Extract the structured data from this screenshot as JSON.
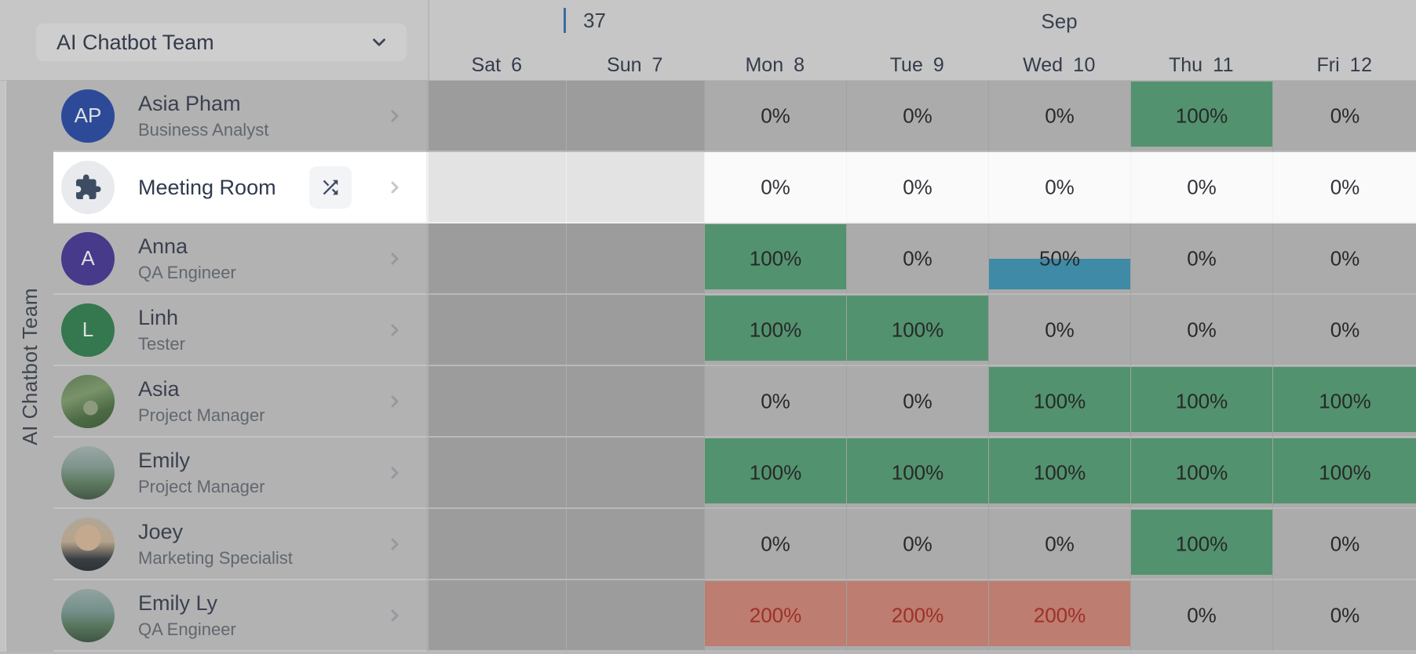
{
  "header": {
    "team_selector": {
      "label": "AI Chatbot Team"
    },
    "week_number": "37",
    "month_label": "Sep",
    "days": [
      {
        "name": "Sat",
        "date": "6",
        "weekend": true
      },
      {
        "name": "Sun",
        "date": "7",
        "weekend": true
      },
      {
        "name": "Mon",
        "date": "8",
        "weekend": false
      },
      {
        "name": "Tue",
        "date": "9",
        "weekend": false
      },
      {
        "name": "Wed",
        "date": "10",
        "weekend": false
      },
      {
        "name": "Thu",
        "date": "11",
        "weekend": false
      },
      {
        "name": "Fri",
        "date": "12",
        "weekend": false
      }
    ]
  },
  "group_label": "AI Chatbot Team",
  "rows": [
    {
      "name": "Asia Pham",
      "role": "Business Analyst",
      "highlight": false,
      "avatar": {
        "kind": "initials",
        "initials": "AP",
        "color": "#2d4a99"
      },
      "cells": [
        {
          "kind": "weekend",
          "label": ""
        },
        {
          "kind": "weekend",
          "label": ""
        },
        {
          "kind": "zero",
          "label": "0%"
        },
        {
          "kind": "zero",
          "label": "0%"
        },
        {
          "kind": "zero",
          "label": "0%"
        },
        {
          "kind": "full",
          "label": "100%"
        },
        {
          "kind": "zero",
          "label": "0%"
        }
      ]
    },
    {
      "name": "Meeting Room",
      "role": "",
      "highlight": true,
      "has_shuffle_button": true,
      "avatar": {
        "kind": "puzzle-icon"
      },
      "cells": [
        {
          "kind": "weekend",
          "label": ""
        },
        {
          "kind": "weekend",
          "label": ""
        },
        {
          "kind": "zero",
          "label": "0%"
        },
        {
          "kind": "zero",
          "label": "0%"
        },
        {
          "kind": "zero",
          "label": "0%"
        },
        {
          "kind": "zero",
          "label": "0%"
        },
        {
          "kind": "zero",
          "label": "0%"
        }
      ]
    },
    {
      "name": "Anna",
      "role": "QA Engineer",
      "highlight": false,
      "avatar": {
        "kind": "initials",
        "initials": "A",
        "color": "#473a8a"
      },
      "cells": [
        {
          "kind": "weekend",
          "label": ""
        },
        {
          "kind": "weekend",
          "label": ""
        },
        {
          "kind": "full",
          "label": "100%"
        },
        {
          "kind": "zero",
          "label": "0%"
        },
        {
          "kind": "half",
          "label": "50%"
        },
        {
          "kind": "zero",
          "label": "0%"
        },
        {
          "kind": "zero",
          "label": "0%"
        }
      ]
    },
    {
      "name": "Linh",
      "role": "Tester",
      "highlight": false,
      "avatar": {
        "kind": "initials",
        "initials": "L",
        "color": "#35784f"
      },
      "cells": [
        {
          "kind": "weekend",
          "label": ""
        },
        {
          "kind": "weekend",
          "label": ""
        },
        {
          "kind": "full",
          "label": "100%"
        },
        {
          "kind": "full",
          "label": "100%"
        },
        {
          "kind": "zero",
          "label": "0%"
        },
        {
          "kind": "zero",
          "label": "0%"
        },
        {
          "kind": "zero",
          "label": "0%"
        }
      ]
    },
    {
      "name": "Asia",
      "role": "Project Manager",
      "highlight": false,
      "avatar": {
        "kind": "photo",
        "photo": "trees"
      },
      "cells": [
        {
          "kind": "weekend",
          "label": ""
        },
        {
          "kind": "weekend",
          "label": ""
        },
        {
          "kind": "zero",
          "label": "0%"
        },
        {
          "kind": "zero",
          "label": "0%"
        },
        {
          "kind": "full",
          "label": "100%"
        },
        {
          "kind": "full",
          "label": "100%"
        },
        {
          "kind": "full",
          "label": "100%"
        }
      ]
    },
    {
      "name": "Emily",
      "role": "Project Manager",
      "highlight": false,
      "avatar": {
        "kind": "photo",
        "photo": "mountains"
      },
      "cells": [
        {
          "kind": "weekend",
          "label": ""
        },
        {
          "kind": "weekend",
          "label": ""
        },
        {
          "kind": "full",
          "label": "100%"
        },
        {
          "kind": "full",
          "label": "100%"
        },
        {
          "kind": "full",
          "label": "100%"
        },
        {
          "kind": "full",
          "label": "100%"
        },
        {
          "kind": "full",
          "label": "100%"
        }
      ]
    },
    {
      "name": "Joey",
      "role": "Marketing Specialist",
      "highlight": false,
      "avatar": {
        "kind": "photo",
        "photo": "portrait"
      },
      "cells": [
        {
          "kind": "weekend",
          "label": ""
        },
        {
          "kind": "weekend",
          "label": ""
        },
        {
          "kind": "zero",
          "label": "0%"
        },
        {
          "kind": "zero",
          "label": "0%"
        },
        {
          "kind": "zero",
          "label": "0%"
        },
        {
          "kind": "full",
          "label": "100%"
        },
        {
          "kind": "zero",
          "label": "0%"
        }
      ]
    },
    {
      "name": "Emily Ly",
      "role": "QA Engineer",
      "highlight": false,
      "avatar": {
        "kind": "photo",
        "photo": "mountains2"
      },
      "cells": [
        {
          "kind": "weekend",
          "label": ""
        },
        {
          "kind": "weekend",
          "label": ""
        },
        {
          "kind": "over",
          "label": "200%"
        },
        {
          "kind": "over",
          "label": "200%"
        },
        {
          "kind": "over",
          "label": "200%"
        },
        {
          "kind": "zero",
          "label": "0%"
        },
        {
          "kind": "zero",
          "label": "0%"
        }
      ]
    }
  ],
  "colors": {
    "allocation_full": "#53926e",
    "allocation_half": "#3f8aa6",
    "allocation_over_bg": "#bd7d70",
    "allocation_over_text": "#9e3028",
    "week_marker": "#3a6ba3",
    "highlight_row_bg": "#ffffff"
  }
}
